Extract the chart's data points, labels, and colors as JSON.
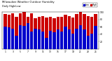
{
  "title": "Milwaukee Weather Outdoor Humidity",
  "subtitle": "Daily High/Low",
  "high_values": [
    95,
    93,
    96,
    88,
    96,
    100,
    88,
    96,
    83,
    88,
    90,
    85,
    88,
    83,
    88,
    88,
    93,
    90,
    85,
    95,
    100,
    95,
    90,
    88,
    95
  ],
  "low_values": [
    60,
    58,
    55,
    35,
    65,
    62,
    70,
    48,
    55,
    52,
    48,
    30,
    50,
    45,
    52,
    48,
    60,
    52,
    42,
    55,
    65,
    52,
    35,
    42,
    62
  ],
  "high_color": "#cc0000",
  "low_color": "#0000cc",
  "bg_color": "#ffffff",
  "plot_bg": "#ffffff",
  "ylim": [
    0,
    100
  ],
  "bar_width": 0.4,
  "legend_labels": [
    "Low",
    "High"
  ],
  "dotted_indices": [
    19,
    20
  ],
  "yticks": [
    20,
    40,
    60,
    80,
    100
  ],
  "x_labels": [
    "1",
    "",
    "3",
    "",
    "5",
    "",
    "7",
    "",
    "9",
    "",
    "11",
    "",
    "13",
    "",
    "15",
    "",
    "17",
    "",
    "19",
    "",
    "21",
    "",
    "23",
    "",
    "25"
  ]
}
